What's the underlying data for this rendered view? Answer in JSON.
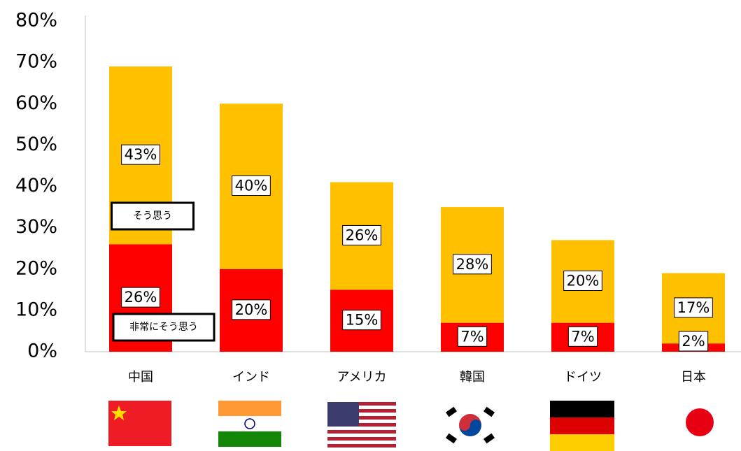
{
  "chart_data": {
    "type": "stacked-bar",
    "categories": [
      "中国",
      "インド",
      "アメリカ",
      "韓国",
      "ドイツ",
      "日本"
    ],
    "series": [
      {
        "name": "非常にそう思う",
        "color": "#ff0000",
        "values": [
          26,
          20,
          15,
          7,
          7,
          2
        ],
        "value_labels": [
          "26%",
          "20%",
          "15%",
          "7%",
          "7%",
          "2%"
        ]
      },
      {
        "name": "そう思う",
        "color": "#ffc000",
        "values": [
          43,
          40,
          26,
          28,
          20,
          17
        ],
        "value_labels": [
          "43%",
          "40%",
          "26%",
          "28%",
          "20%",
          "17%"
        ]
      }
    ],
    "ylim": [
      0,
      80
    ],
    "yticks": [
      {
        "value": 0,
        "label": "0%"
      },
      {
        "value": 10,
        "label": "10%"
      },
      {
        "value": 20,
        "label": "20%"
      },
      {
        "value": 30,
        "label": "30%"
      },
      {
        "value": 40,
        "label": "40%"
      },
      {
        "value": 50,
        "label": "50%"
      },
      {
        "value": 60,
        "label": "60%"
      },
      {
        "value": 70,
        "label": "70%"
      },
      {
        "value": 80,
        "label": "80%"
      }
    ],
    "grid": false
  }
}
